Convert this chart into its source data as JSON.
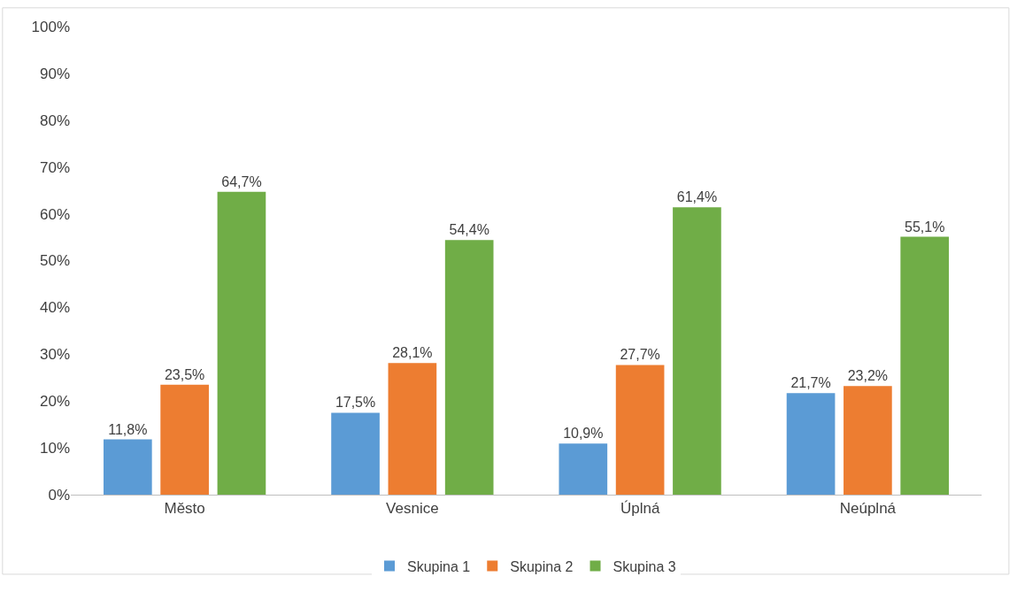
{
  "chart_data": {
    "type": "bar",
    "categories": [
      "Město",
      "Vesnice",
      "Úplná",
      "Neúplná"
    ],
    "series": [
      {
        "name": "Skupina 1",
        "color": "#5b9bd5",
        "values": [
          11.8,
          17.5,
          10.9,
          21.7
        ],
        "value_labels": [
          "11,8%",
          "17,5%",
          "10,9%",
          "21,7%"
        ]
      },
      {
        "name": "Skupina 2",
        "color": "#ed7d31",
        "values": [
          23.5,
          28.1,
          27.7,
          23.2
        ],
        "value_labels": [
          "23,5%",
          "28,1%",
          "27,7%",
          "23,2%"
        ]
      },
      {
        "name": "Skupina 3",
        "color": "#70ad47",
        "values": [
          64.7,
          54.4,
          61.4,
          55.1
        ],
        "value_labels": [
          "64,7%",
          "54,4%",
          "61,4%",
          "55,1%"
        ]
      }
    ],
    "ylim": [
      0,
      100
    ],
    "yticks": [
      {
        "value": 0,
        "label": "0%"
      },
      {
        "value": 10,
        "label": "10%"
      },
      {
        "value": 20,
        "label": "20%"
      },
      {
        "value": 30,
        "label": "30%"
      },
      {
        "value": 40,
        "label": "40%"
      },
      {
        "value": 50,
        "label": "50%"
      },
      {
        "value": 60,
        "label": "60%"
      },
      {
        "value": 70,
        "label": "70%"
      },
      {
        "value": 80,
        "label": "80%"
      },
      {
        "value": 90,
        "label": "90%"
      },
      {
        "value": 100,
        "label": "100%"
      }
    ],
    "grid": false,
    "legend": "bottom"
  }
}
